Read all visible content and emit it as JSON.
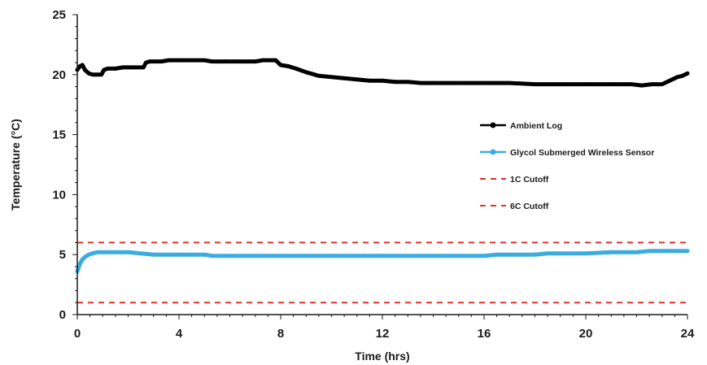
{
  "chart_data": {
    "type": "line",
    "xlabel": "Time (hrs)",
    "ylabel": "Temperature (°C)",
    "xlim": [
      0,
      24
    ],
    "ylim": [
      0,
      25
    ],
    "xticks": [
      0,
      4,
      8,
      12,
      16,
      20,
      24
    ],
    "yticks": [
      0,
      5,
      10,
      15,
      20,
      25
    ],
    "grid": false,
    "legend_position": "right",
    "series": [
      {
        "name": "Ambient Log",
        "color": "#000000",
        "style": "solid-markers",
        "x": [
          0,
          0.1,
          0.2,
          0.3,
          0.45,
          0.6,
          0.8,
          0.95,
          1.05,
          1.2,
          1.5,
          1.8,
          2.0,
          2.3,
          2.6,
          2.7,
          2.85,
          3.0,
          3.3,
          3.6,
          4.0,
          4.5,
          5.0,
          5.3,
          5.8,
          6.3,
          6.8,
          7.0,
          7.3,
          7.6,
          7.8,
          8.0,
          8.3,
          8.6,
          9.0,
          9.5,
          10.0,
          10.5,
          11.0,
          11.5,
          12.0,
          12.5,
          13.0,
          13.5,
          14.0,
          15.0,
          16.0,
          17.0,
          18.0,
          19.0,
          20.0,
          21.0,
          21.8,
          22.2,
          22.6,
          23.0,
          23.3,
          23.6,
          23.8,
          24.0
        ],
        "y": [
          20.4,
          20.7,
          20.8,
          20.4,
          20.1,
          20.0,
          20.0,
          20.0,
          20.4,
          20.5,
          20.5,
          20.6,
          20.6,
          20.6,
          20.6,
          21.0,
          21.1,
          21.1,
          21.1,
          21.2,
          21.2,
          21.2,
          21.2,
          21.1,
          21.1,
          21.1,
          21.1,
          21.1,
          21.2,
          21.2,
          21.2,
          20.8,
          20.7,
          20.5,
          20.2,
          19.9,
          19.8,
          19.7,
          19.6,
          19.5,
          19.5,
          19.4,
          19.4,
          19.3,
          19.3,
          19.3,
          19.3,
          19.3,
          19.2,
          19.2,
          19.2,
          19.2,
          19.2,
          19.1,
          19.2,
          19.2,
          19.5,
          19.8,
          19.9,
          20.1
        ]
      },
      {
        "name": "Glycol Submerged Wireless Sensor",
        "color": "#3aace0",
        "style": "solid-markers",
        "x": [
          0,
          0.05,
          0.1,
          0.2,
          0.3,
          0.45,
          0.6,
          0.8,
          1.0,
          1.5,
          2.0,
          2.5,
          3.0,
          4.0,
          5.0,
          5.3,
          6.0,
          8.0,
          10.0,
          12.0,
          14.0,
          16.0,
          16.5,
          18.0,
          18.5,
          20.0,
          21.0,
          22.0,
          22.5,
          23.0,
          24.0
        ],
        "y": [
          3.6,
          3.9,
          4.2,
          4.6,
          4.8,
          5.0,
          5.1,
          5.2,
          5.2,
          5.2,
          5.2,
          5.1,
          5.0,
          5.0,
          5.0,
          4.9,
          4.9,
          4.9,
          4.9,
          4.9,
          4.9,
          4.9,
          5.0,
          5.0,
          5.1,
          5.1,
          5.2,
          5.2,
          5.3,
          5.3,
          5.3
        ]
      },
      {
        "name": "1C Cutoff",
        "color": "#e0302a",
        "style": "dashed",
        "x": [
          0,
          24
        ],
        "y": [
          1,
          1
        ]
      },
      {
        "name": "6C Cutoff",
        "color": "#e0302a",
        "style": "dashed",
        "x": [
          0,
          24
        ],
        "y": [
          6,
          6
        ]
      }
    ]
  }
}
